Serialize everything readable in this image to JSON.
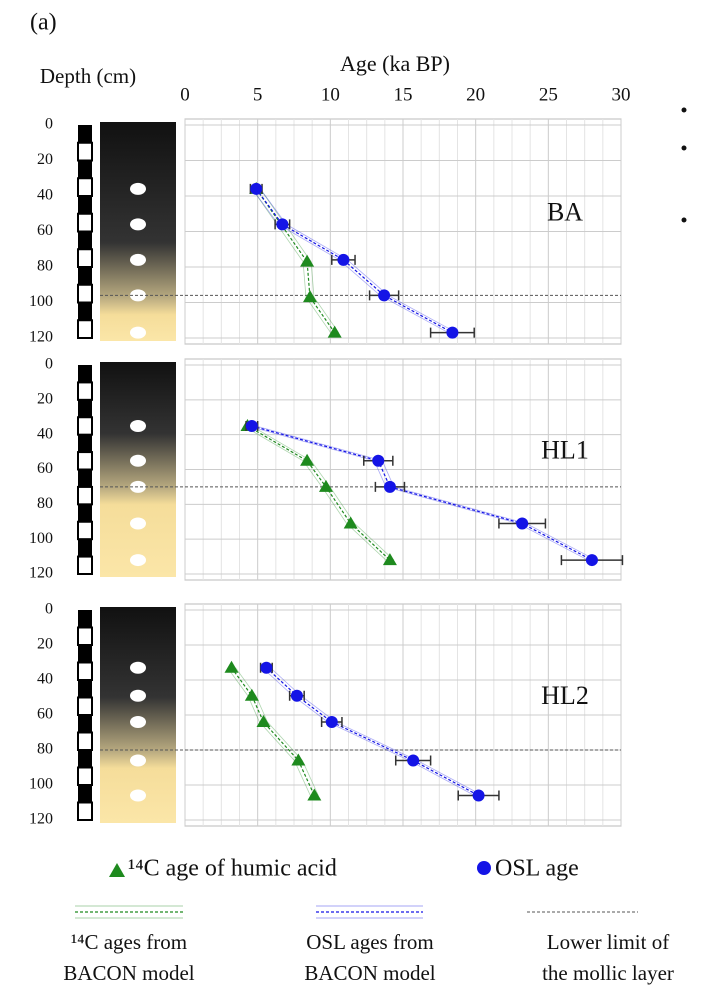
{
  "figure_label": "(a)",
  "x_label": "Age (ka BP)",
  "y_label": "Depth (cm)",
  "xlim": [
    0,
    30
  ],
  "xticks": [
    0,
    5,
    10,
    15,
    20,
    25,
    30
  ],
  "legend": {
    "c14_points": "¹⁴C age of humic acid",
    "osl_points": "OSL age",
    "c14_model": [
      "¹⁴C ages from",
      "BACON model"
    ],
    "osl_model": [
      "OSL ages from",
      "BACON model"
    ],
    "mollic": [
      "Lower limit of",
      "the mollic layer"
    ]
  },
  "chart_data": [
    {
      "type": "scatter",
      "label": "BA",
      "ylim": [
        0,
        120
      ],
      "yticks": [
        0,
        20,
        40,
        60,
        80,
        100,
        120
      ],
      "grid": true,
      "mollic_limit": 96,
      "series": [
        {
          "name": "¹⁴C age of humic acid",
          "color": "#1e8a1e",
          "marker": "triangle",
          "x": [
            4.9,
            8.4,
            8.6,
            10.3
          ],
          "values": [
            36,
            77,
            97,
            117
          ]
        },
        {
          "name": "OSL age",
          "color": "#1414e6",
          "marker": "circle",
          "x": [
            4.9,
            6.7,
            10.9,
            13.7,
            18.4
          ],
          "values": [
            36,
            56,
            76,
            96,
            117
          ],
          "errors": [
            0.4,
            0.5,
            0.8,
            1.0,
            1.5
          ]
        }
      ]
    },
    {
      "type": "scatter",
      "label": "HL1",
      "ylim": [
        0,
        120
      ],
      "yticks": [
        0,
        20,
        40,
        60,
        80,
        100,
        120
      ],
      "grid": true,
      "mollic_limit": 70,
      "series": [
        {
          "name": "¹⁴C age of humic acid",
          "color": "#1e8a1e",
          "marker": "triangle",
          "x": [
            4.3,
            8.4,
            9.7,
            11.4,
            14.1
          ],
          "values": [
            35,
            55,
            70,
            91,
            112
          ]
        },
        {
          "name": "OSL age",
          "color": "#1414e6",
          "marker": "circle",
          "x": [
            4.6,
            13.3,
            14.1,
            23.2,
            28.0
          ],
          "values": [
            35,
            55,
            70,
            91,
            112
          ],
          "errors": [
            0.4,
            1.0,
            1.0,
            1.6,
            2.1
          ]
        }
      ]
    },
    {
      "type": "scatter",
      "label": "HL2",
      "ylim": [
        0,
        120
      ],
      "yticks": [
        0,
        20,
        40,
        60,
        80,
        100,
        120
      ],
      "grid": true,
      "mollic_limit": 80,
      "series": [
        {
          "name": "¹⁴C age of humic acid",
          "color": "#1e8a1e",
          "marker": "triangle",
          "x": [
            3.2,
            4.6,
            5.4,
            7.8,
            8.9
          ],
          "values": [
            33,
            49,
            64,
            86,
            106
          ]
        },
        {
          "name": "OSL age",
          "color": "#1414e6",
          "marker": "circle",
          "x": [
            5.6,
            7.7,
            10.1,
            15.7,
            20.2
          ],
          "values": [
            33,
            49,
            64,
            86,
            106
          ],
          "errors": [
            0.4,
            0.5,
            0.7,
            1.2,
            1.4
          ]
        }
      ]
    }
  ]
}
